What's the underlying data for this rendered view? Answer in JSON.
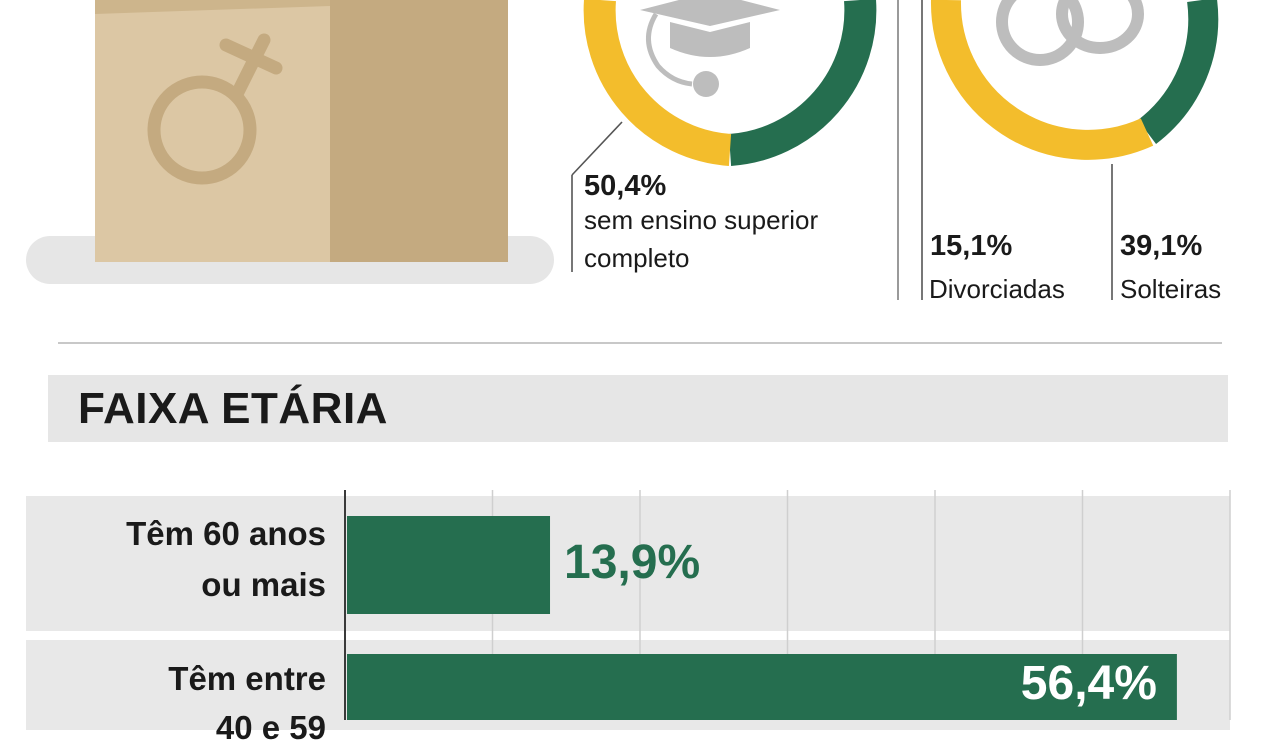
{
  "colors": {
    "green": "#256e4f",
    "yellow": "#f3bd2c",
    "box_light": "#dcc7a4",
    "box_dark": "#c4aa80",
    "icon_grey": "#bdbdbd"
  },
  "education": {
    "percent": "50,4%",
    "label_line1": "sem ensino superior",
    "label_line2": "completo",
    "icon": "graduation-cap-icon"
  },
  "marital": {
    "icon": "wedding-rings-icon",
    "divorced": {
      "percent": "15,1%",
      "label": "Divorciadas"
    },
    "single": {
      "percent": "39,1%",
      "label": "Solteiras"
    }
  },
  "gender_icon": "female-symbol-icon",
  "age_section": {
    "title": "FAIXA ETÁRIA"
  },
  "chart_data": {
    "type": "bar",
    "orientation": "horizontal",
    "categories": [
      "Têm 60 anos ou mais",
      "Têm entre 40 e 59"
    ],
    "category_lines": [
      [
        "Têm 60 anos",
        "ou mais"
      ],
      [
        "Têm entre",
        "40 e 59"
      ]
    ],
    "values": [
      13.9,
      56.4
    ],
    "value_labels": [
      "13,9%",
      "56,4%"
    ],
    "xlim": [
      0,
      60
    ],
    "grid": true
  }
}
